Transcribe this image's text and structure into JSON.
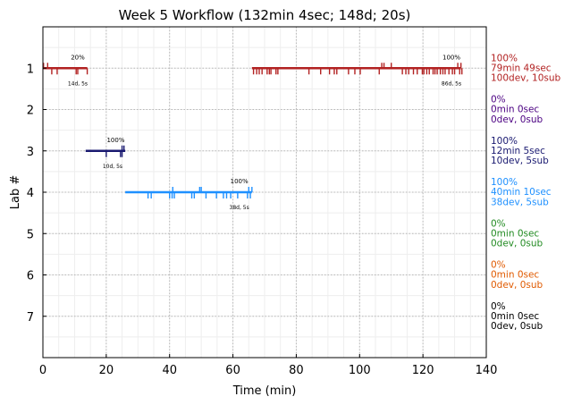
{
  "chart_data": {
    "type": "timeline",
    "title": "Week 5 Workflow (132min 4sec; 148d; 20s)",
    "xlabel": "Time (min)",
    "ylabel": "Lab #",
    "xlim": [
      0,
      140
    ],
    "ylim": [
      0,
      8
    ],
    "y_inverted": true,
    "x_ticks": [
      "0",
      "20",
      "40",
      "60",
      "80",
      "100",
      "120",
      "140"
    ],
    "y_ticks": [
      "1",
      "2",
      "3",
      "4",
      "5",
      "6",
      "7"
    ],
    "grid": true,
    "labs": [
      {
        "lab": 1,
        "color": "#b22222",
        "segments": [
          [
            0,
            14
          ],
          [
            66,
            132
          ]
        ],
        "pct_marks": [
          {
            "x": 11,
            "text": "20%"
          },
          {
            "x": 129,
            "text": "100%"
          }
        ],
        "count_marks": [
          {
            "x": 11,
            "text": "14d, 5s"
          },
          {
            "x": 129,
            "text": "86d, 5s"
          }
        ],
        "up_ticks": [
          0.2,
          1.5,
          107,
          107.7,
          110,
          131,
          132
        ],
        "down_ticks": [
          2.8,
          4.5,
          10.5,
          11,
          14,
          66.5,
          67.5,
          68.3,
          69.2,
          70.8,
          71.5,
          72,
          73.6,
          74.2,
          84,
          87.7,
          90.5,
          92,
          92.8,
          96.5,
          98.5,
          100.2,
          106.2,
          113.5,
          114.6,
          115.5,
          117,
          118.2,
          119.8,
          120.3,
          121.2,
          122,
          123.2,
          123.8,
          124.5,
          125.5,
          126.3,
          127,
          128.2,
          129.3,
          130,
          131.6,
          132.3
        ],
        "summary": [
          "100%",
          "79min 49sec",
          "100dev, 10sub"
        ]
      },
      {
        "lab": 2,
        "color": "#4b0082",
        "segments": [],
        "pct_marks": [],
        "count_marks": [],
        "up_ticks": [],
        "down_ticks": [],
        "summary": [
          "0%",
          "0min 0sec",
          "0dev, 0sub"
        ]
      },
      {
        "lab": 3,
        "color": "#191970",
        "segments": [
          [
            13.5,
            26
          ]
        ],
        "pct_marks": [
          {
            "x": 23,
            "text": "100%"
          }
        ],
        "count_marks": [
          {
            "x": 22,
            "text": "10d, 5s"
          }
        ],
        "up_ticks": [
          25,
          25.6
        ],
        "down_ticks": [
          20,
          24.5,
          25
        ],
        "summary": [
          "100%",
          "12min 5sec",
          "10dev, 5sub"
        ]
      },
      {
        "lab": 4,
        "color": "#1e90ff",
        "segments": [
          [
            26,
            66
          ]
        ],
        "pct_marks": [
          {
            "x": 62,
            "text": "100%"
          }
        ],
        "count_marks": [
          {
            "x": 62,
            "text": "38d, 5s"
          }
        ],
        "up_ticks": [
          41,
          49.5,
          50,
          65,
          66
        ],
        "down_ticks": [
          33.2,
          34.2,
          40,
          40.8,
          41.5,
          47,
          47.8,
          51.5,
          54.8,
          57,
          58,
          59.3,
          61.5,
          64.6,
          65.5
        ],
        "summary": [
          "100%",
          "40min 10sec",
          "38dev, 5sub"
        ]
      },
      {
        "lab": 5,
        "color": "#228b22",
        "segments": [],
        "pct_marks": [],
        "count_marks": [],
        "up_ticks": [],
        "down_ticks": [],
        "summary": [
          "0%",
          "0min 0sec",
          "0dev, 0sub"
        ]
      },
      {
        "lab": 6,
        "color": "#e05a00",
        "segments": [],
        "pct_marks": [],
        "count_marks": [],
        "up_ticks": [],
        "down_ticks": [],
        "summary": [
          "0%",
          "0min 0sec",
          "0dev, 0sub"
        ]
      },
      {
        "lab": 7,
        "color": "#000000",
        "segments": [],
        "pct_marks": [],
        "count_marks": [],
        "up_ticks": [],
        "down_ticks": [],
        "summary": [
          "0%",
          "0min 0sec",
          "0dev, 0sub"
        ]
      }
    ]
  }
}
